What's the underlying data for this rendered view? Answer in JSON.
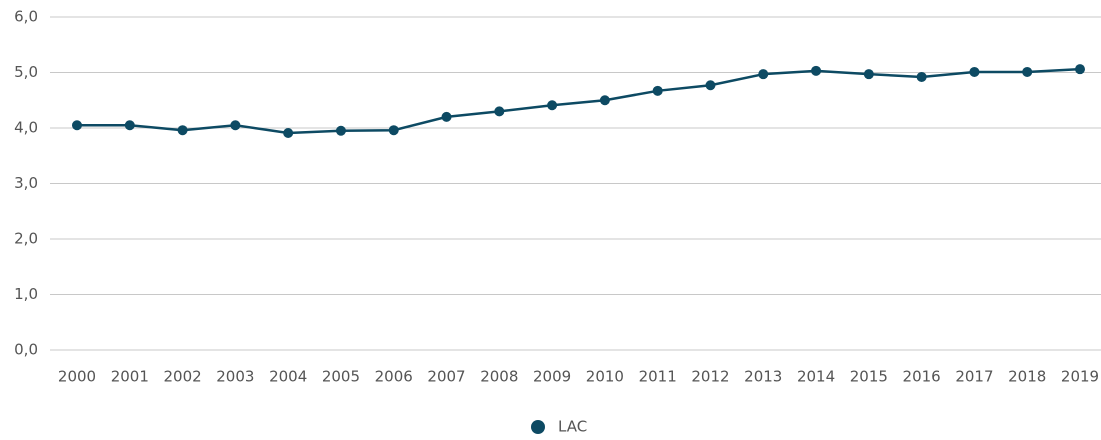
{
  "chart_data": {
    "type": "line",
    "categories": [
      "2000",
      "2001",
      "2002",
      "2003",
      "2004",
      "2005",
      "2006",
      "2007",
      "2008",
      "2009",
      "2010",
      "2011",
      "2012",
      "2013",
      "2014",
      "2015",
      "2016",
      "2017",
      "2018",
      "2019"
    ],
    "series": [
      {
        "name": "LAC",
        "color": "#0d4a63",
        "values": [
          4.05,
          4.05,
          3.96,
          4.05,
          3.91,
          3.95,
          3.96,
          4.2,
          4.3,
          4.41,
          4.5,
          4.67,
          4.77,
          4.97,
          5.03,
          4.97,
          4.92,
          5.01,
          5.01,
          5.06
        ]
      }
    ],
    "ylim": [
      0,
      6
    ],
    "yticks": [
      {
        "value": 0,
        "label": "0,0"
      },
      {
        "value": 1,
        "label": "1,0"
      },
      {
        "value": 2,
        "label": "2,0"
      },
      {
        "value": 3,
        "label": "3,0"
      },
      {
        "value": 4,
        "label": "4,0"
      },
      {
        "value": 5,
        "label": "5,0"
      },
      {
        "value": 6,
        "label": "6,0"
      }
    ],
    "grid": true,
    "legend": "bottom"
  }
}
